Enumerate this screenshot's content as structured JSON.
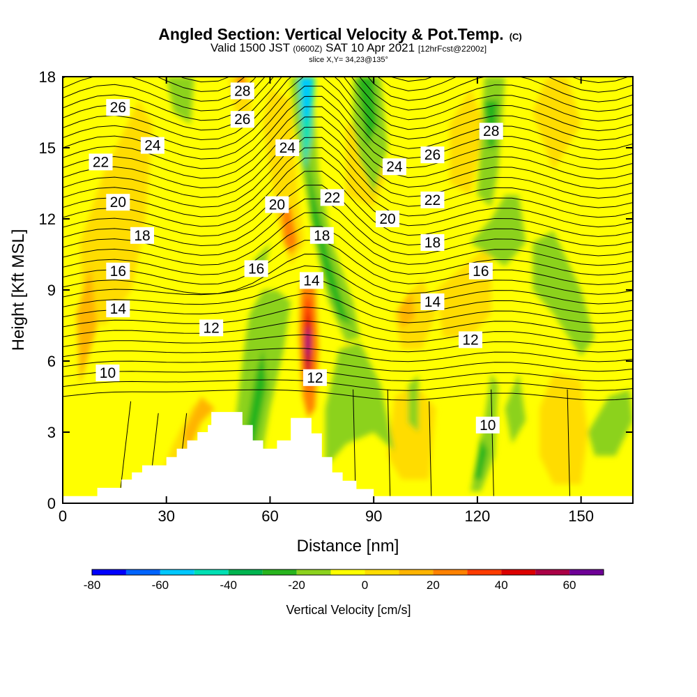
{
  "chart_data": {
    "type": "heatmap",
    "title": "Angled Section: Vertical Velocity & Pot.Temp.",
    "title_suffix": "(C)",
    "subtitle_line1": {
      "valid": "Valid 1500 JST",
      "utc": "(0600Z)",
      "date": "SAT 10 Apr 2021",
      "fcst": "[12hrFcst@2200z]"
    },
    "subtitle_line2": "slice X,Y= 34,23@135°",
    "xlabel": "Distance [nm]",
    "ylabel": "Height [Kft MSL]",
    "xlim": [
      0,
      165
    ],
    "ylim": [
      0,
      18
    ],
    "x_ticks": [
      0,
      30,
      60,
      90,
      120,
      150
    ],
    "y_ticks": [
      0,
      3,
      6,
      9,
      12,
      15,
      18
    ],
    "colorbar": {
      "label": "Vertical Velocity [cm/s]",
      "ticks": [
        -80,
        -60,
        -40,
        -20,
        0,
        20,
        40,
        60
      ],
      "range": [
        -80,
        70
      ],
      "step": 10,
      "colors": [
        "#0000ff",
        "#0064ff",
        "#00c8ff",
        "#00e0b4",
        "#00b450",
        "#28b41e",
        "#8cd21e",
        "#ffff00",
        "#ffdc00",
        "#ffb400",
        "#ff8200",
        "#ff3c00",
        "#dc0000",
        "#aa0046",
        "#6e0096"
      ]
    },
    "terrain_kft": [
      [
        0,
        0.3
      ],
      [
        10,
        0.3
      ],
      [
        10,
        0.65
      ],
      [
        17,
        0.65
      ],
      [
        17,
        1.0
      ],
      [
        20,
        1.0
      ],
      [
        20,
        1.3
      ],
      [
        23,
        1.3
      ],
      [
        23,
        1.6
      ],
      [
        30,
        1.6
      ],
      [
        30,
        1.95
      ],
      [
        33,
        1.95
      ],
      [
        33,
        2.3
      ],
      [
        36,
        2.3
      ],
      [
        36,
        2.65
      ],
      [
        39,
        2.65
      ],
      [
        39,
        3.0
      ],
      [
        42,
        3.0
      ],
      [
        42,
        3.3
      ],
      [
        43,
        3.3
      ],
      [
        43,
        3.85
      ],
      [
        52,
        3.85
      ],
      [
        52,
        3.3
      ],
      [
        55,
        3.3
      ],
      [
        55,
        2.65
      ],
      [
        58,
        2.65
      ],
      [
        58,
        2.3
      ],
      [
        62,
        2.3
      ],
      [
        62,
        2.65
      ],
      [
        66,
        2.65
      ],
      [
        66,
        3.6
      ],
      [
        72,
        3.6
      ],
      [
        72,
        2.95
      ],
      [
        75,
        2.95
      ],
      [
        75,
        1.95
      ],
      [
        78,
        1.95
      ],
      [
        78,
        1.3
      ],
      [
        81,
        1.3
      ],
      [
        81,
        0.95
      ],
      [
        85,
        0.95
      ],
      [
        85,
        0.6
      ],
      [
        90,
        0.6
      ],
      [
        90,
        0.3
      ],
      [
        165,
        0.3
      ]
    ],
    "isentrope_labels": [
      {
        "text": "28",
        "x": 52,
        "y": 17.4
      },
      {
        "text": "26",
        "x": 16,
        "y": 16.7
      },
      {
        "text": "26",
        "x": 52,
        "y": 16.2
      },
      {
        "text": "24",
        "x": 26,
        "y": 15.1
      },
      {
        "text": "24",
        "x": 65,
        "y": 15.0
      },
      {
        "text": "28",
        "x": 124,
        "y": 15.7
      },
      {
        "text": "22",
        "x": 11,
        "y": 14.4
      },
      {
        "text": "24",
        "x": 96,
        "y": 14.2
      },
      {
        "text": "26",
        "x": 107,
        "y": 14.7
      },
      {
        "text": "22",
        "x": 78,
        "y": 12.9
      },
      {
        "text": "22",
        "x": 107,
        "y": 12.8
      },
      {
        "text": "20",
        "x": 16,
        "y": 12.7
      },
      {
        "text": "20",
        "x": 62,
        "y": 12.6
      },
      {
        "text": "20",
        "x": 94,
        "y": 12.0
      },
      {
        "text": "18",
        "x": 23,
        "y": 11.3
      },
      {
        "text": "18",
        "x": 75,
        "y": 11.3
      },
      {
        "text": "18",
        "x": 107,
        "y": 11.0
      },
      {
        "text": "16",
        "x": 16,
        "y": 9.8
      },
      {
        "text": "16",
        "x": 56,
        "y": 9.9
      },
      {
        "text": "16",
        "x": 121,
        "y": 9.8
      },
      {
        "text": "14",
        "x": 72,
        "y": 9.4
      },
      {
        "text": "14",
        "x": 16,
        "y": 8.2
      },
      {
        "text": "14",
        "x": 107,
        "y": 8.5
      },
      {
        "text": "12",
        "x": 43,
        "y": 7.4
      },
      {
        "text": "12",
        "x": 118,
        "y": 6.9
      },
      {
        "text": "12",
        "x": 73,
        "y": 5.3
      },
      {
        "text": "10",
        "x": 13,
        "y": 5.5
      },
      {
        "text": "10",
        "x": 123,
        "y": 3.3
      }
    ]
  }
}
